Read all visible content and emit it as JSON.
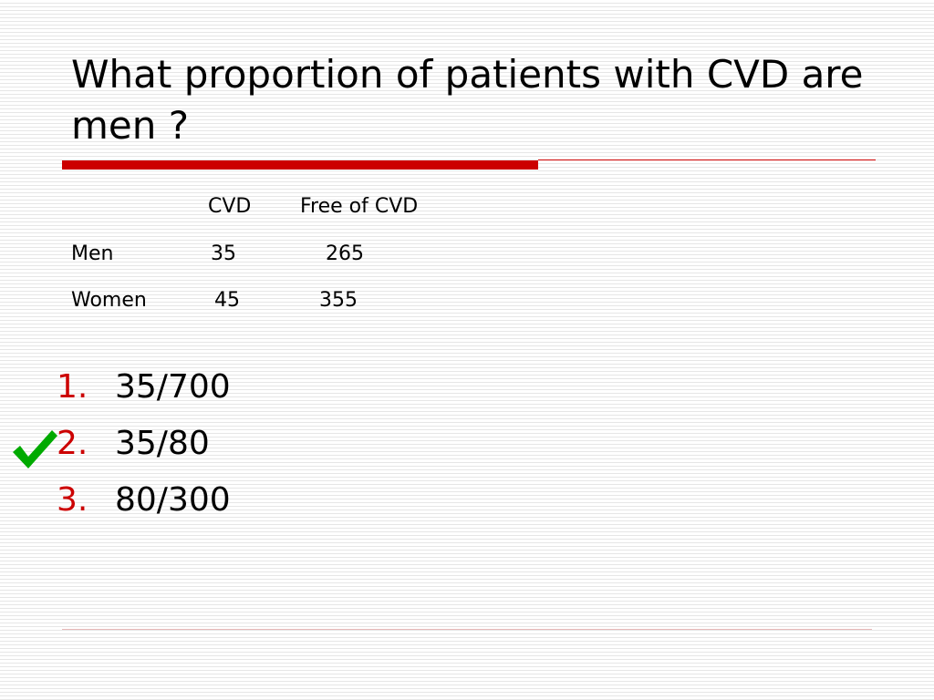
{
  "slide": {
    "title": "What proportion of patients with CVD are men ?",
    "accent_color": "#cc0000",
    "check_color": "#00aa00"
  },
  "table": {
    "headers": [
      "",
      "CVD",
      "Free of CVD"
    ],
    "rows": [
      {
        "label": "Men",
        "cvd": "35",
        "free": "265"
      },
      {
        "label": "Women",
        "cvd": "45",
        "free": "355"
      }
    ]
  },
  "answers": [
    {
      "number": "1.",
      "text": "35/700",
      "correct": false
    },
    {
      "number": "2.",
      "text": "35/80",
      "correct": true
    },
    {
      "number": "3.",
      "text": "80/300",
      "correct": false
    }
  ],
  "icons": {
    "correct_marker": "checkmark-icon"
  }
}
